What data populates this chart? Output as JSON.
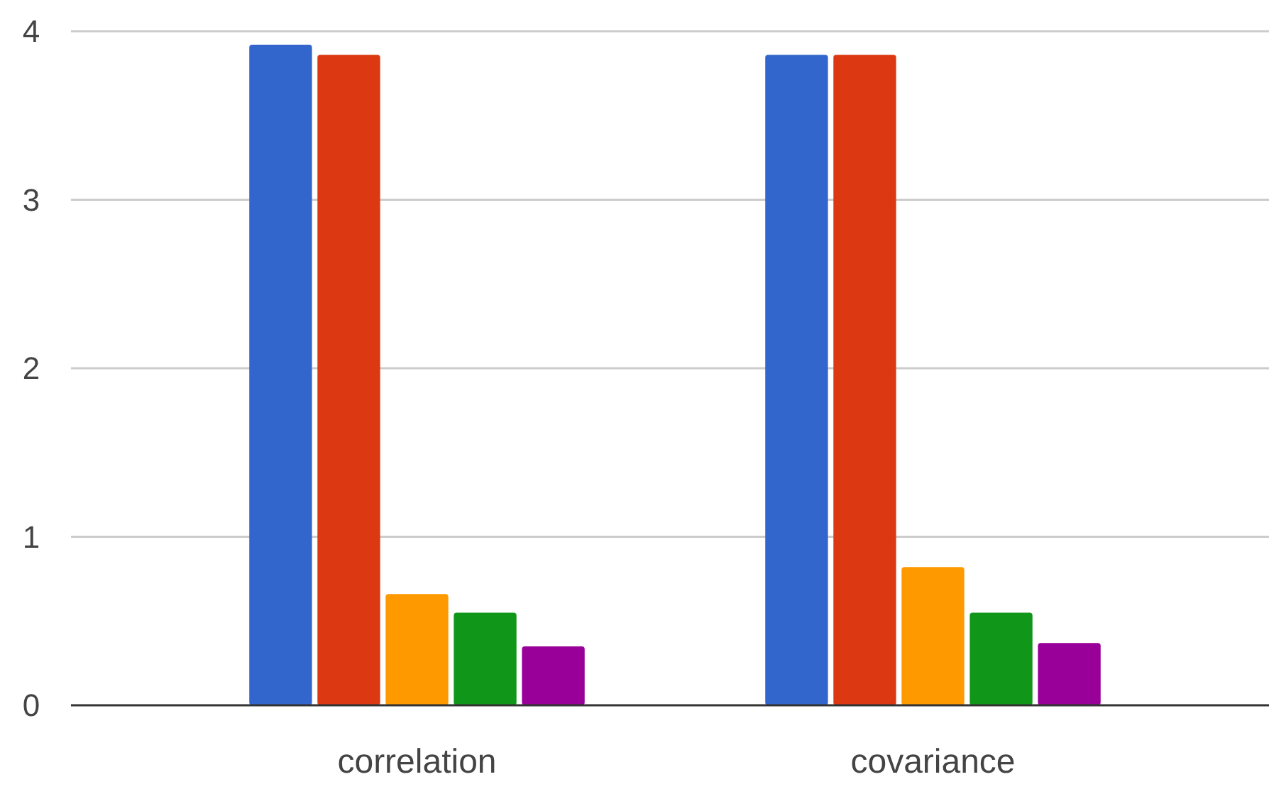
{
  "chart_data": {
    "type": "bar",
    "categories": [
      "correlation",
      "covariance"
    ],
    "series": [
      {
        "color": "#3366cc",
        "values": [
          3.92,
          3.86
        ]
      },
      {
        "color": "#dc3912",
        "values": [
          3.86,
          3.86
        ]
      },
      {
        "color": "#ff9900",
        "values": [
          0.66,
          0.82
        ]
      },
      {
        "color": "#109618",
        "values": [
          0.55,
          0.55
        ]
      },
      {
        "color": "#990099",
        "values": [
          0.35,
          0.37
        ]
      }
    ],
    "ylim": [
      0,
      4
    ],
    "yticks": [
      0,
      1,
      2,
      3,
      4
    ],
    "grid": true
  }
}
